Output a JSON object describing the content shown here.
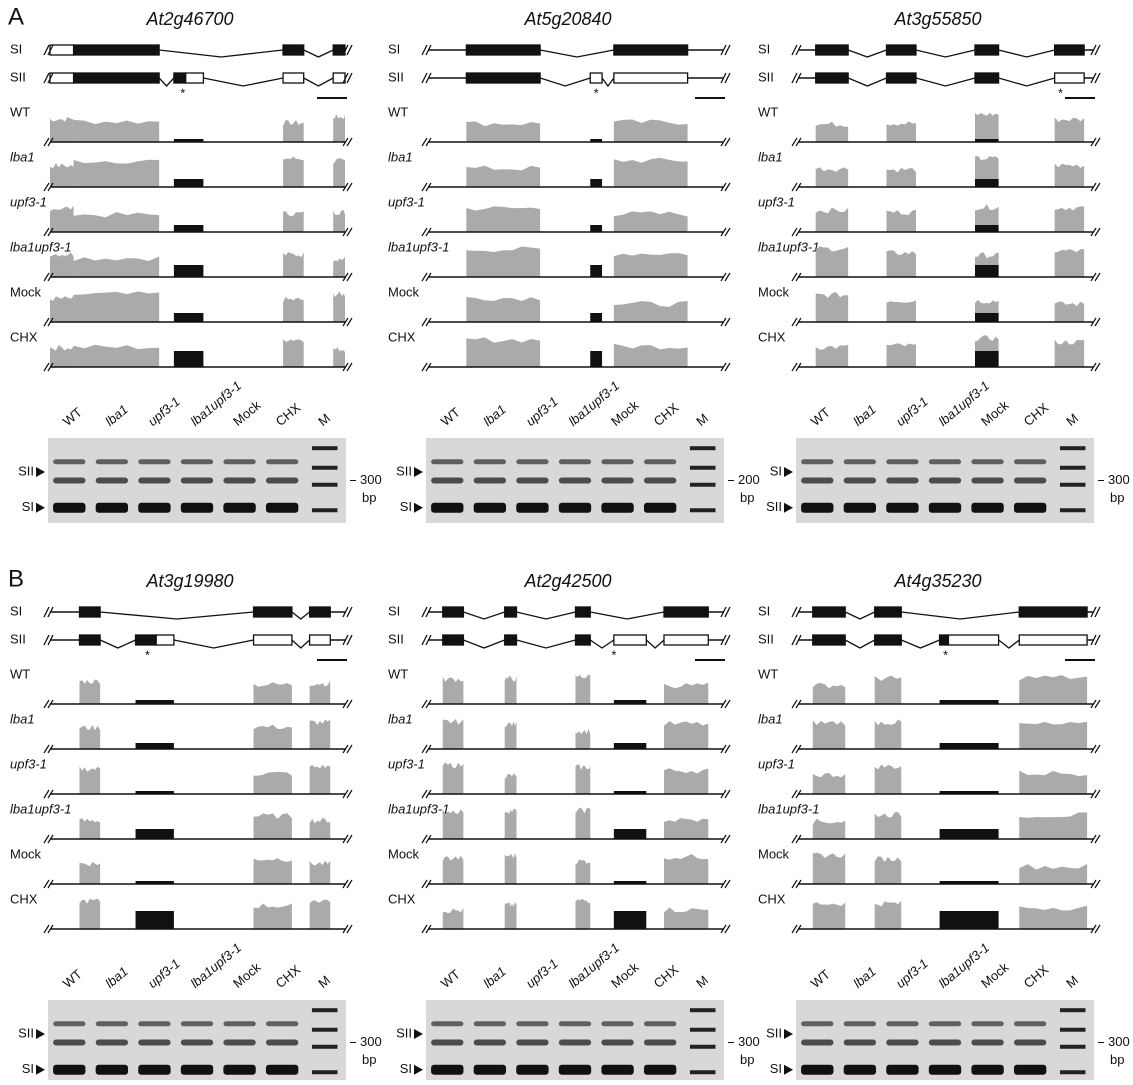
{
  "panels": [
    {
      "label": "A",
      "genes": [
        {
          "name": "At2g46700",
          "isoforms": [
            "SI",
            "SII"
          ],
          "asterisk": "*",
          "tracks": [
            "WT",
            "lba1",
            "upf3-1",
            "lba1upf3-1",
            "Mock",
            "CHX"
          ],
          "gel": {
            "lanes": [
              "WT",
              "lba1",
              "upf3-1",
              "lba1upf3-1",
              "Mock",
              "CHX",
              "M"
            ],
            "bands": [
              "SII",
              "SI"
            ],
            "size": "300",
            "unit": "bp"
          }
        },
        {
          "name": "At5g20840",
          "isoforms": [
            "SI",
            "SII"
          ],
          "asterisk": "*",
          "tracks": [
            "WT",
            "lba1",
            "upf3-1",
            "lba1upf3-1",
            "Mock",
            "CHX"
          ],
          "gel": {
            "lanes": [
              "WT",
              "lba1",
              "upf3-1",
              "lba1upf3-1",
              "Mock",
              "CHX",
              "M"
            ],
            "bands": [
              "SII",
              "SI"
            ],
            "size": "200",
            "unit": "bp"
          }
        },
        {
          "name": "At3g55850",
          "isoforms": [
            "SI",
            "SII"
          ],
          "asterisk": "*",
          "tracks": [
            "WT",
            "lba1",
            "upf3-1",
            "lba1upf3-1",
            "Mock",
            "CHX"
          ],
          "gel": {
            "lanes": [
              "WT",
              "lba1",
              "upf3-1",
              "lba1upf3-1",
              "Mock",
              "CHX",
              "M"
            ],
            "bands": [
              "SI",
              "SII"
            ],
            "size": "300",
            "unit": "bp"
          }
        }
      ]
    },
    {
      "label": "B",
      "genes": [
        {
          "name": "At3g19980",
          "isoforms": [
            "SI",
            "SII"
          ],
          "asterisk": "*",
          "tracks": [
            "WT",
            "lba1",
            "upf3-1",
            "lba1upf3-1",
            "Mock",
            "CHX"
          ],
          "gel": {
            "lanes": [
              "WT",
              "lba1",
              "upf3-1",
              "lba1upf3-1",
              "Mock",
              "CHX",
              "M"
            ],
            "bands": [
              "SII",
              "SI"
            ],
            "size": "300",
            "unit": "bp"
          }
        },
        {
          "name": "At2g42500",
          "isoforms": [
            "SI",
            "SII"
          ],
          "asterisk": "*",
          "tracks": [
            "WT",
            "lba1",
            "upf3-1",
            "lba1upf3-1",
            "Mock",
            "CHX"
          ],
          "gel": {
            "lanes": [
              "WT",
              "lba1",
              "upf3-1",
              "lba1upf3-1",
              "Mock",
              "CHX",
              "M"
            ],
            "bands": [
              "SII",
              "SI"
            ],
            "size": "300",
            "unit": "bp"
          }
        },
        {
          "name": "At4g35230",
          "isoforms": [
            "SI",
            "SII"
          ],
          "asterisk": "*",
          "tracks": [
            "WT",
            "lba1",
            "upf3-1",
            "lba1upf3-1",
            "Mock",
            "CHX"
          ],
          "gel": {
            "lanes": [
              "WT",
              "lba1",
              "upf3-1",
              "lba1upf3-1",
              "Mock",
              "CHX",
              "M"
            ],
            "bands": [
              "SII",
              "SI"
            ],
            "size": "300",
            "unit": "bp"
          }
        }
      ]
    }
  ]
}
